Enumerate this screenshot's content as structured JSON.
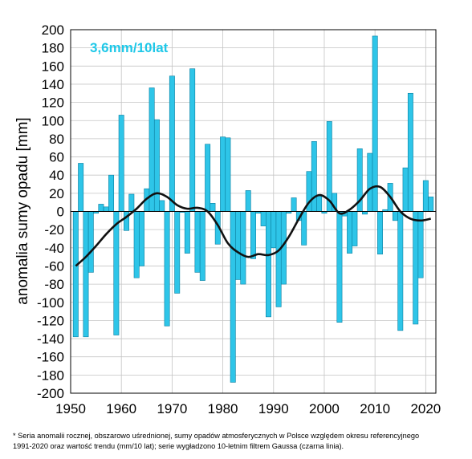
{
  "chart_data": {
    "type": "bar",
    "ylabel": "anomalia sumy opadu [mm]",
    "annotation": "3,6mm/10lat",
    "ylim": [
      -200,
      200
    ],
    "xlim": [
      1950,
      2022
    ],
    "y_ticks": [
      200,
      180,
      160,
      140,
      120,
      100,
      80,
      60,
      40,
      20,
      0,
      -20,
      -40,
      -60,
      -80,
      -100,
      -120,
      -140,
      -160,
      -180,
      -200
    ],
    "x_ticks": [
      1950,
      1960,
      1970,
      1980,
      1990,
      2000,
      2010,
      2020
    ],
    "grid": true,
    "bar_color": "#2ec5e8",
    "line_color": "#111111",
    "years": [
      1951,
      1952,
      1953,
      1954,
      1955,
      1956,
      1957,
      1958,
      1959,
      1960,
      1961,
      1962,
      1963,
      1964,
      1965,
      1966,
      1967,
      1968,
      1969,
      1970,
      1971,
      1972,
      1973,
      1974,
      1975,
      1976,
      1977,
      1978,
      1979,
      1980,
      1981,
      1982,
      1983,
      1984,
      1985,
      1986,
      1987,
      1988,
      1989,
      1990,
      1991,
      1992,
      1993,
      1994,
      1995,
      1996,
      1997,
      1998,
      1999,
      2000,
      2001,
      2002,
      2003,
      2004,
      2005,
      2006,
      2007,
      2008,
      2009,
      2010,
      2011,
      2012,
      2013,
      2014,
      2015,
      2016,
      2017,
      2018,
      2019,
      2020,
      2021
    ],
    "values": [
      -138,
      53,
      -138,
      -67,
      -2,
      8,
      5,
      40,
      -136,
      106,
      -21,
      19,
      -73,
      -60,
      25,
      136,
      101,
      12,
      -126,
      149,
      -90,
      -1,
      -46,
      157,
      -67,
      -76,
      74,
      9,
      -36,
      82,
      81,
      -188,
      -75,
      -80,
      23,
      -52,
      -2,
      -16,
      -116,
      -40,
      -105,
      -80,
      -2,
      15,
      -10,
      -37,
      44,
      77,
      18,
      -2,
      99,
      20,
      -122,
      -5,
      -46,
      -38,
      69,
      -3,
      64,
      193,
      -47,
      2,
      31,
      -10,
      -131,
      48,
      130,
      -124,
      -73,
      34,
      16
    ],
    "smoothed": {
      "years": [
        1951,
        1953,
        1955,
        1957,
        1959,
        1961,
        1963,
        1965,
        1967,
        1969,
        1971,
        1973,
        1975,
        1977,
        1979,
        1981,
        1983,
        1985,
        1987,
        1989,
        1991,
        1993,
        1995,
        1997,
        1999,
        2001,
        2003,
        2005,
        2007,
        2009,
        2011,
        2013,
        2015,
        2017,
        2019,
        2021
      ],
      "values": [
        -60,
        -50,
        -38,
        -25,
        -14,
        -6,
        3,
        14,
        20,
        16,
        7,
        3,
        4,
        0,
        -15,
        -35,
        -45,
        -50,
        -47,
        -48,
        -43,
        -28,
        -8,
        10,
        18,
        12,
        -2,
        2,
        12,
        25,
        27,
        16,
        0,
        -8,
        -10,
        -8
      ]
    }
  },
  "footnote": {
    "line1": "* Seria anomalii rocznej, obszarowo uśrednionej, sumy opadów atmosferycznych w Polsce względem okresu referencyjnego",
    "line2": "1991-2020 oraz wartość trendu (mm/10 lat); serie wygładzono 10-letnim filtrem Gaussa (czarna linia)."
  }
}
